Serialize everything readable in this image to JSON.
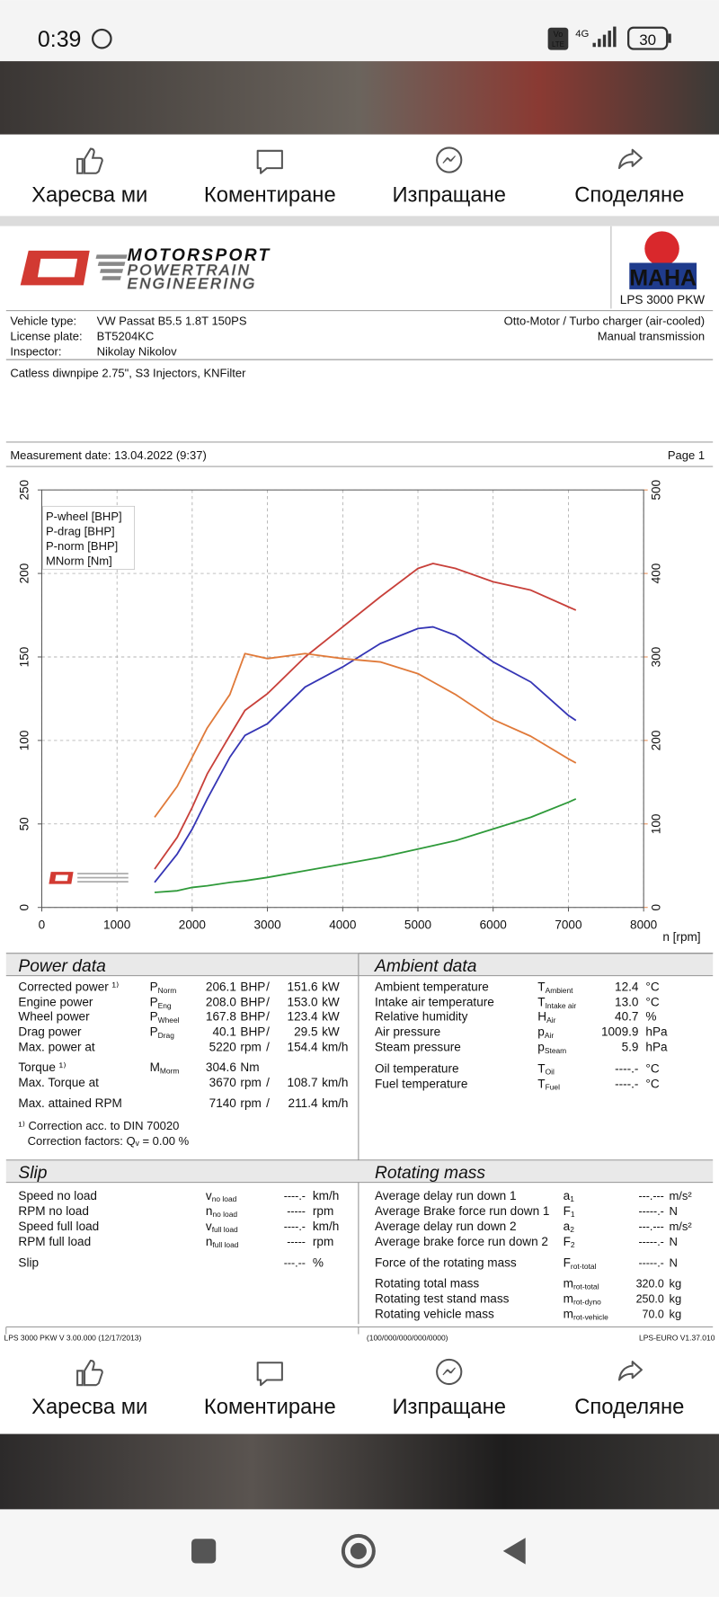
{
  "status": {
    "time": "0:39",
    "volte": [
      "Vo",
      "LTE"
    ],
    "network": "4G",
    "battery": "30"
  },
  "actions": [
    "Харесва ми",
    "Коментиране",
    "Изпращане",
    "Споделяне"
  ],
  "document": {
    "logo": [
      "MOTORSPORT",
      "POWERTRAIN",
      "ENGINEERING"
    ],
    "maha": "MAHA",
    "product": "LPS 3000 PKW",
    "vehicle": [
      {
        "label": "Vehicle type:",
        "value": "VW Passat B5.5 1.8T 150PS"
      },
      {
        "label": "License plate:",
        "value": "BT5204KC"
      },
      {
        "label": "Inspector:",
        "value": "Nikolay Nikolov"
      }
    ],
    "engine": [
      "Otto-Motor / Turbo charger (air-cooled)",
      "Manual transmission"
    ],
    "note": "Catless diwnpipe 2.75\", S3 Injectors, KNFilter",
    "measurement_date": "Measurement date: 13.04.2022 (9:37)",
    "page": "Page 1",
    "power_data": {
      "title": "Power data",
      "sep": "/",
      "rows": [
        {
          "label": "Corrected power ¹⁾",
          "sym": "P",
          "sub": "Norm",
          "v1": "206.1",
          "u1": "BHP",
          "v2": "151.6",
          "u2": "kW",
          "color": "#c8403a"
        },
        {
          "label": "Engine power",
          "sym": "P",
          "sub": "Eng",
          "v1": "208.0",
          "u1": "BHP",
          "v2": "153.0",
          "u2": "kW",
          "color": "#c8403a"
        },
        {
          "label": "Wheel power",
          "sym": "P",
          "sub": "Wheel",
          "v1": "167.8",
          "u1": "BHP",
          "v2": "123.4",
          "u2": "kW",
          "color": "#3535b5"
        },
        {
          "label": "Drag power",
          "sym": "P",
          "sub": "Drag",
          "v1": "40.1",
          "u1": "BHP",
          "v2": "29.5",
          "u2": "kW",
          "color": "#2f9a3a"
        },
        {
          "label": "Max. power at",
          "v1": "5220",
          "u1": "rpm",
          "v2": "154.4",
          "u2": "km/h",
          "color": "#111111"
        },
        {
          "label": "Torque ¹⁾",
          "sym": "M",
          "sub": "Morm",
          "v1": "304.6",
          "u1": "Nm",
          "color": "#e07a3a"
        },
        {
          "label": "Max. Torque at",
          "v1": "3670",
          "u1": "rpm",
          "v2": "108.7",
          "u2": "km/h",
          "color": "#111111"
        },
        {
          "label": "Max. attained RPM",
          "v1": "7140",
          "u1": "rpm",
          "v2": "211.4",
          "u2": "km/h",
          "color": "#111111"
        }
      ],
      "notes": [
        "¹⁾ Correction acc. to DIN 70020",
        "Correction factors: Qᵥ =  0.00 %"
      ]
    },
    "ambient_data": {
      "title": "Ambient data",
      "rows": [
        {
          "label": "Ambient temperature",
          "sym": "T",
          "sub": "Ambient",
          "value": "12.4",
          "unit": "°C"
        },
        {
          "label": "Intake air temperature",
          "sym": "T",
          "sub": "Intake air",
          "value": "13.0",
          "unit": "°C"
        },
        {
          "label": "Relative humidity",
          "sym": "H",
          "sub": "Air",
          "value": "40.7",
          "unit": "%"
        },
        {
          "label": "Air pressure",
          "sym": "p",
          "sub": "Air",
          "value": "1009.9",
          "unit": "hPa"
        },
        {
          "label": "Steam pressure",
          "sym": "p",
          "sub": "Steam",
          "value": "5.9",
          "unit": "hPa"
        },
        {
          "label": "Oil temperature",
          "sym": "T",
          "sub": "Oil",
          "value": "----.-",
          "unit": "°C"
        },
        {
          "label": "Fuel temperature",
          "sym": "T",
          "sub": "Fuel",
          "value": "----.-",
          "unit": "°C"
        }
      ]
    },
    "slip": {
      "title": "Slip",
      "rows": [
        {
          "label": "Speed no load",
          "sym": "v",
          "sub": "no load",
          "value": "----.-",
          "unit": "km/h"
        },
        {
          "label": "RPM no load",
          "sym": "n",
          "sub": "no load",
          "value": "-----",
          "unit": "rpm"
        },
        {
          "label": "Speed full load",
          "sym": "v",
          "sub": "full load",
          "value": "----.-",
          "unit": "km/h"
        },
        {
          "label": "RPM full load",
          "sym": "n",
          "sub": "full load",
          "value": "-----",
          "unit": "rpm"
        },
        {
          "label": "Slip",
          "value": "---.--",
          "unit": "%"
        }
      ]
    },
    "rotating_mass": {
      "title": "Rotating mass",
      "rows": [
        {
          "label": "Average delay run down 1",
          "sym": "a",
          "sub": "1",
          "value": "---.---",
          "unit": "m/s²"
        },
        {
          "label": "Average Brake force run down 1",
          "sym": "F",
          "sub": "1",
          "value": "-----.-",
          "unit": "N"
        },
        {
          "label": "Average delay run down 2",
          "sym": "a",
          "sub": "2",
          "value": "---.---",
          "unit": "m/s²"
        },
        {
          "label": "Average brake force run down 2",
          "sym": "F",
          "sub": "2",
          "value": "-----.-",
          "unit": "N"
        },
        {
          "label": "Force of the rotating mass",
          "sym": "F",
          "sub": "rot-total",
          "value": "-----.-",
          "unit": "N"
        },
        {
          "label": "Rotating total mass",
          "sym": "m",
          "sub": "rot-total",
          "value": "320.0",
          "unit": "kg"
        },
        {
          "label": "Rotating test stand mass",
          "sym": "m",
          "sub": "rot-dyno",
          "value": "250.0",
          "unit": "kg"
        },
        {
          "label": "Rotating vehicle mass",
          "sym": "m",
          "sub": "rot-vehicle",
          "value": "70.0",
          "unit": "kg"
        }
      ]
    },
    "footer": [
      "LPS 3000 PKW V 3.00.000 (12/17/2013)",
      "(100/000/000/000/0000)",
      "LPS-EURO V1.37.010"
    ]
  },
  "chart_data": {
    "type": "line",
    "x_label": "n [rpm]",
    "x": [
      1500,
      1800,
      2000,
      2200,
      2500,
      2700,
      3000,
      3500,
      4000,
      4500,
      5000,
      5200,
      5500,
      6000,
      6500,
      7000,
      7100
    ],
    "series": [
      {
        "name": "P-wheel [BHP]",
        "color": "#3535b5",
        "values": [
          15,
          32,
          47,
          65,
          90,
          103,
          110,
          132,
          144,
          158,
          167,
          168,
          163,
          147,
          135,
          115,
          112
        ]
      },
      {
        "name": "P-drag [BHP]",
        "color": "#2f9a3a",
        "values": [
          9,
          10,
          12,
          13,
          15,
          16,
          18,
          22,
          26,
          30,
          35,
          37,
          40,
          47,
          54,
          63,
          65
        ]
      },
      {
        "name": "P-norm [BHP]",
        "color": "#c8403a",
        "values": [
          23,
          42,
          60,
          80,
          103,
          118,
          128,
          150,
          168,
          186,
          203,
          206,
          203,
          195,
          190,
          180,
          178
        ]
      },
      {
        "name": "MNorm [Nm]",
        "color": "#e07a3a",
        "axis": "y2",
        "values": [
          108,
          145,
          180,
          215,
          255,
          304,
          298,
          304,
          298,
          294,
          280,
          270,
          255,
          225,
          205,
          178,
          173
        ]
      }
    ],
    "xlim": [
      0,
      8000
    ],
    "xticks": [
      0,
      1000,
      2000,
      3000,
      4000,
      5000,
      6000,
      7000,
      8000
    ],
    "ylim": [
      0,
      250
    ],
    "yticks": [
      0,
      50,
      100,
      150,
      200,
      250
    ],
    "y2lim": [
      0,
      500
    ],
    "y2ticks": [
      0,
      100,
      200,
      300,
      400,
      500
    ],
    "y2color": "#e07a3a",
    "grid": true,
    "legend": "upper left"
  }
}
